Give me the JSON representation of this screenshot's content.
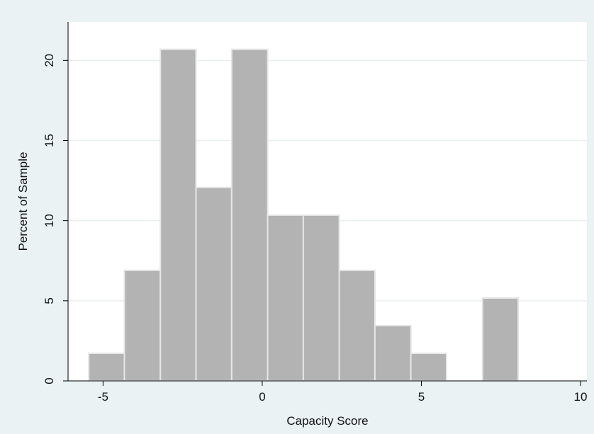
{
  "chart_data": {
    "type": "bar",
    "subtype": "histogram",
    "xlabel": "Capacity Score",
    "ylabel": "Percent of Sample",
    "xlim": [
      -6.1,
      10.2
    ],
    "ylim": [
      0,
      22.4
    ],
    "xticks": [
      -5,
      0,
      5,
      10
    ],
    "yticks": [
      0,
      5,
      10,
      15,
      20
    ],
    "grid": true,
    "bins": [
      {
        "x0": -5.45,
        "x1": -4.33,
        "value": 1.72
      },
      {
        "x0": -4.33,
        "x1": -3.2,
        "value": 6.9
      },
      {
        "x0": -3.2,
        "x1": -2.08,
        "value": 20.69
      },
      {
        "x0": -2.08,
        "x1": -0.96,
        "value": 12.07
      },
      {
        "x0": -0.96,
        "x1": 0.17,
        "value": 20.69
      },
      {
        "x0": 0.17,
        "x1": 1.29,
        "value": 10.34
      },
      {
        "x0": 1.29,
        "x1": 2.42,
        "value": 10.34
      },
      {
        "x0": 2.42,
        "x1": 3.54,
        "value": 6.9
      },
      {
        "x0": 3.54,
        "x1": 4.67,
        "value": 3.45
      },
      {
        "x0": 4.67,
        "x1": 5.79,
        "value": 1.72
      },
      {
        "x0": 5.79,
        "x1": 6.92,
        "value": 0
      },
      {
        "x0": 6.92,
        "x1": 8.04,
        "value": 5.17
      }
    ]
  },
  "colors": {
    "background": "#eaf2f3",
    "plot_area": "#ffffff",
    "bar_fill": "#b3b3b3",
    "bar_stroke": "#e6e6e6",
    "gridline": "#e9eff0",
    "axis": "#000000"
  }
}
